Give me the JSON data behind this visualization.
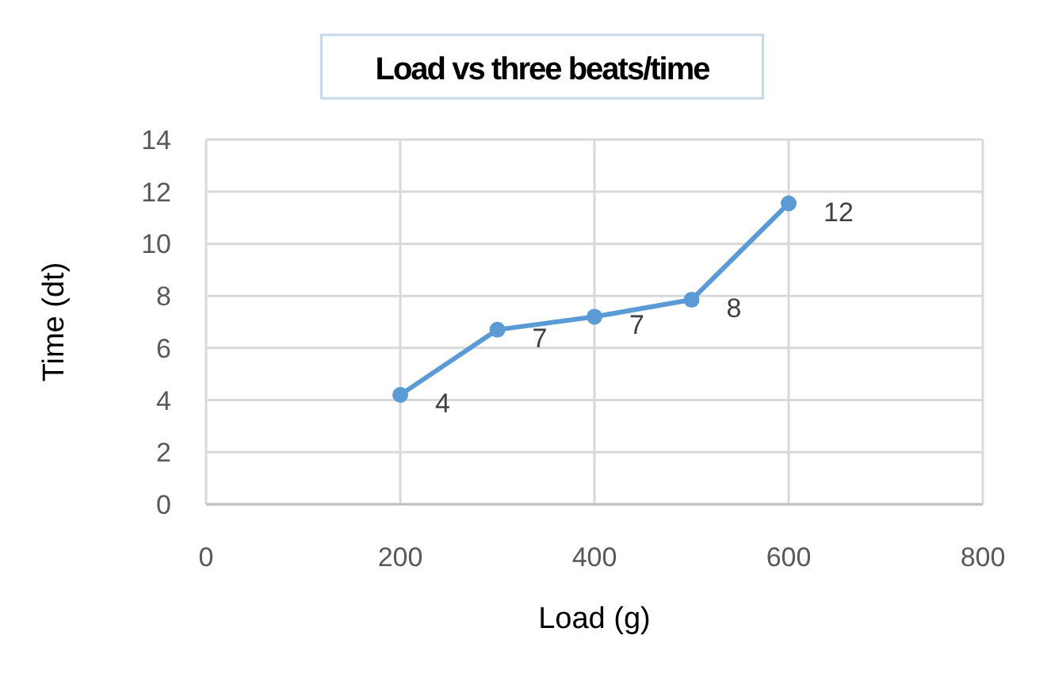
{
  "chart_data": {
    "type": "line",
    "title": "Load  vs three beats/time",
    "xlabel": "Load (g)",
    "ylabel": "Time (dt)",
    "x": [
      200,
      300,
      400,
      500,
      600
    ],
    "series": [
      {
        "color": "#5b9bd5",
        "values": [
          4.2,
          6.7,
          7.2,
          7.85,
          11.55
        ],
        "value_labels": [
          "4",
          "7",
          "7",
          "8",
          "12"
        ]
      }
    ],
    "xlim": [
      0,
      800
    ],
    "xticks": [
      0,
      200,
      400,
      600,
      800
    ],
    "ylim": [
      0,
      14
    ],
    "yticks": [
      0,
      2,
      4,
      6,
      8,
      10,
      12,
      14
    ],
    "grid": true,
    "marker": "circle",
    "line_style": "solid"
  }
}
